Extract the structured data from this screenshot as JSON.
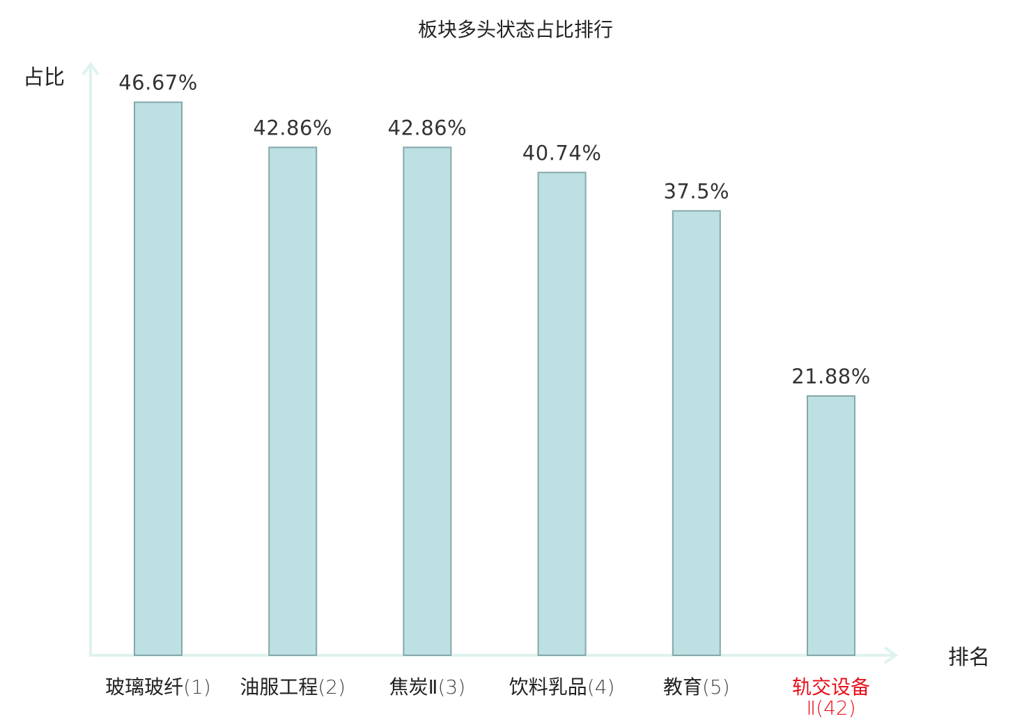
{
  "chart_data": {
    "type": "bar",
    "title": "板块多头状态占比排行",
    "ylabel": "占比",
    "xlabel": "排名",
    "categories": [
      {
        "name": "玻璃玻纤",
        "rank": "(1)",
        "highlight": false
      },
      {
        "name": "油服工程",
        "rank": "(2)",
        "highlight": false
      },
      {
        "name": "焦炭Ⅱ",
        "rank": "(3)",
        "highlight": false
      },
      {
        "name": "饮料乳品",
        "rank": "(4)",
        "highlight": false
      },
      {
        "name": "教育",
        "rank": "(5)",
        "highlight": false
      },
      {
        "name": "轨交设备",
        "rank": "Ⅱ(42)",
        "highlight": true
      }
    ],
    "values": [
      46.67,
      42.86,
      42.86,
      40.74,
      37.5,
      21.88
    ],
    "value_labels": [
      "46.67%",
      "42.86%",
      "42.86%",
      "40.74%",
      "37.5%",
      "21.88%"
    ],
    "ylim": [
      0,
      50
    ],
    "grid": false,
    "colors": {
      "bar_fill": "#bde0e3",
      "bar_stroke": "#86a7a8",
      "axis": "#dff2ef",
      "label_text": "#333333",
      "highlight_text": "#e8101b"
    }
  }
}
